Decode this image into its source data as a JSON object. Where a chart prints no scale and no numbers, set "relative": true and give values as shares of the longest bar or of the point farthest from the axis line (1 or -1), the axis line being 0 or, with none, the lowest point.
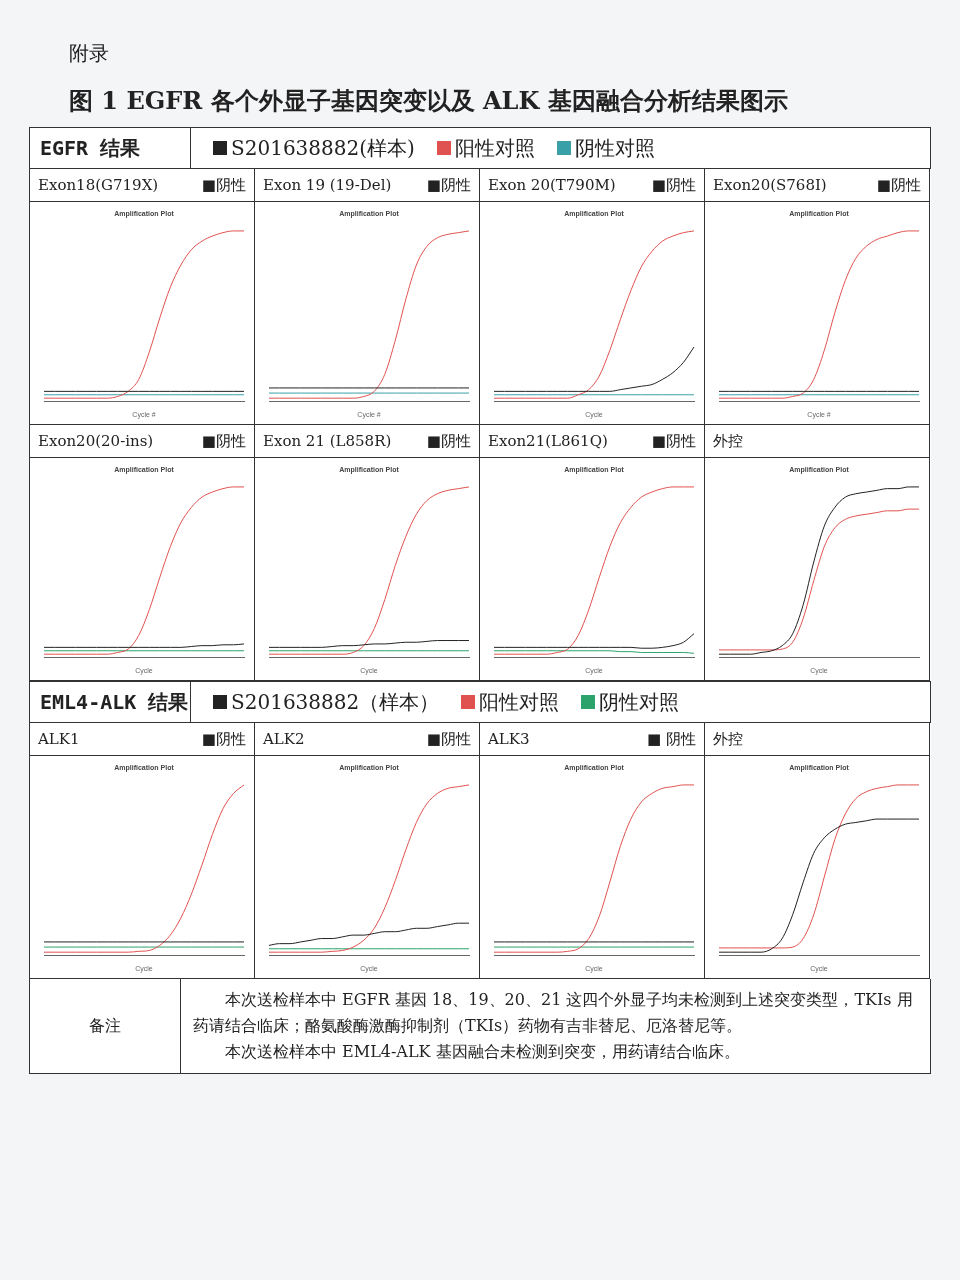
{
  "chart_data": [
    {
      "type": "other",
      "title": "图 1 EGFR 各个外显子基因突变以及 ALK 基因融合分析结果图示",
      "annotations": [
        "附录"
      ]
    },
    {
      "type": "other",
      "title": "EGFR 结果",
      "annotations": [
        "S201638882(样本)",
        "阳性对照",
        "阴性对照"
      ]
    },
    {
      "type": "line",
      "title": "Exon18(G719X)",
      "subtitle": "Amplification Plot",
      "xlabel": "Cycle #",
      "annotations": [
        "■阴性"
      ],
      "relative": true,
      "tick_labels": false,
      "categories": [
        null,
        null,
        null,
        null,
        null,
        null,
        null,
        null,
        null,
        null,
        null,
        null,
        null,
        null,
        null,
        null,
        null,
        null,
        null,
        null
      ],
      "series": [
        {
          "color": "#222222",
          "values": [
            0.06,
            0.06,
            0.06,
            0.06,
            0.06,
            0.06,
            0.06,
            0.06,
            0.06,
            0.06,
            0.06,
            0.06,
            0.06,
            0.06,
            0.06,
            0.06,
            0.06,
            0.06,
            0.06,
            0.06
          ]
        },
        {
          "color": "#e0524f",
          "values": [
            0.02,
            0.02,
            0.02,
            0.02,
            0.02,
            0.02,
            0.02,
            0.03,
            0.06,
            0.13,
            0.29,
            0.49,
            0.67,
            0.8,
            0.89,
            0.94,
            0.97,
            0.99,
            1,
            1
          ]
        },
        {
          "color": "#3aa0a8",
          "values": [
            0.04,
            0.04,
            0.04,
            0.04,
            0.04,
            0.04,
            0.04,
            0.04,
            0.04,
            0.04,
            0.04,
            0.04,
            0.04,
            0.04,
            0.04,
            0.04,
            0.04,
            0.04,
            0.04,
            0.04
          ]
        }
      ]
    },
    {
      "type": "line",
      "title": "Exon 19 (19-Del)",
      "subtitle": "Amplification Plot",
      "xlabel": "Cycle #",
      "annotations": [
        "■阴性"
      ],
      "relative": true,
      "tick_labels": false,
      "categories": [
        null,
        null,
        null,
        null,
        null,
        null,
        null,
        null,
        null,
        null,
        null,
        null,
        null,
        null,
        null,
        null,
        null,
        null,
        null,
        null
      ],
      "series": [
        {
          "color": "#222222",
          "values": [
            0.08,
            0.08,
            0.08,
            0.08,
            0.08,
            0.08,
            0.08,
            0.08,
            0.08,
            0.08,
            0.08,
            0.08,
            0.08,
            0.08,
            0.08,
            0.08,
            0.08,
            0.08,
            0.08,
            0.08
          ]
        },
        {
          "color": "#e0524f",
          "values": [
            0.02,
            0.02,
            0.02,
            0.02,
            0.02,
            0.02,
            0.02,
            0.02,
            0.02,
            0.03,
            0.06,
            0.16,
            0.36,
            0.6,
            0.8,
            0.91,
            0.96,
            0.98,
            0.99,
            1
          ]
        },
        {
          "color": "#3aa0a8",
          "values": [
            0.05,
            0.05,
            0.05,
            0.05,
            0.05,
            0.05,
            0.05,
            0.05,
            0.05,
            0.05,
            0.05,
            0.05,
            0.05,
            0.05,
            0.05,
            0.05,
            0.05,
            0.05,
            0.05,
            0.05
          ]
        }
      ]
    },
    {
      "type": "line",
      "title": "Exon 20(T790M)",
      "subtitle": "Amplification Plot",
      "xlabel": "Cycle",
      "annotations": [
        "■阴性"
      ],
      "relative": true,
      "tick_labels": false,
      "categories": [
        null,
        null,
        null,
        null,
        null,
        null,
        null,
        null,
        null,
        null,
        null,
        null,
        null,
        null,
        null,
        null,
        null,
        null,
        null,
        null
      ],
      "series": [
        {
          "color": "#222222",
          "values": [
            0.06,
            0.06,
            0.06,
            0.06,
            0.06,
            0.06,
            0.06,
            0.06,
            0.06,
            0.06,
            0.06,
            0.06,
            0.07,
            0.08,
            0.09,
            0.1,
            0.13,
            0.17,
            0.23,
            0.32
          ]
        },
        {
          "color": "#e0524f",
          "values": [
            0.02,
            0.02,
            0.02,
            0.02,
            0.02,
            0.02,
            0.02,
            0.02,
            0.04,
            0.07,
            0.15,
            0.3,
            0.48,
            0.65,
            0.79,
            0.88,
            0.94,
            0.97,
            0.99,
            1
          ]
        },
        {
          "color": "#3aa0a8",
          "values": [
            0.04,
            0.04,
            0.04,
            0.04,
            0.04,
            0.04,
            0.04,
            0.04,
            0.04,
            0.04,
            0.04,
            0.04,
            0.04,
            0.04,
            0.04,
            0.04,
            0.04,
            0.04,
            0.04,
            0.04
          ]
        }
      ]
    },
    {
      "type": "line",
      "title": "Exon20(S768I)",
      "subtitle": "Amplification Plot",
      "xlabel": "Cycle #",
      "annotations": [
        "■阴性"
      ],
      "relative": true,
      "tick_labels": false,
      "categories": [
        null,
        null,
        null,
        null,
        null,
        null,
        null,
        null,
        null,
        null,
        null,
        null,
        null,
        null,
        null,
        null,
        null,
        null,
        null,
        null
      ],
      "series": [
        {
          "color": "#222222",
          "values": [
            0.06,
            0.06,
            0.06,
            0.06,
            0.06,
            0.06,
            0.06,
            0.06,
            0.06,
            0.06,
            0.06,
            0.06,
            0.06,
            0.06,
            0.06,
            0.06,
            0.06,
            0.06,
            0.06,
            0.06
          ]
        },
        {
          "color": "#e0524f",
          "values": [
            0.02,
            0.02,
            0.02,
            0.02,
            0.02,
            0.02,
            0.02,
            0.03,
            0.05,
            0.13,
            0.3,
            0.52,
            0.71,
            0.84,
            0.91,
            0.95,
            0.97,
            0.99,
            1,
            1
          ]
        },
        {
          "color": "#3aa0a8",
          "values": [
            0.04,
            0.04,
            0.04,
            0.04,
            0.04,
            0.04,
            0.04,
            0.04,
            0.04,
            0.04,
            0.04,
            0.04,
            0.04,
            0.04,
            0.04,
            0.04,
            0.04,
            0.04,
            0.04,
            0.04
          ]
        }
      ]
    },
    {
      "type": "line",
      "title": "Exon20(20-ins)",
      "subtitle": "Amplification Plot",
      "xlabel": "Cycle",
      "annotations": [
        "■阴性"
      ],
      "relative": true,
      "tick_labels": false,
      "categories": [
        null,
        null,
        null,
        null,
        null,
        null,
        null,
        null,
        null,
        null,
        null,
        null,
        null,
        null,
        null,
        null,
        null,
        null,
        null,
        null
      ],
      "series": [
        {
          "color": "#222222",
          "values": [
            0.06,
            0.06,
            0.06,
            0.06,
            0.06,
            0.06,
            0.06,
            0.06,
            0.06,
            0.06,
            0.06,
            0.06,
            0.06,
            0.06,
            0.065,
            0.07,
            0.07,
            0.075,
            0.075,
            0.08
          ]
        },
        {
          "color": "#e0524f",
          "values": [
            0.02,
            0.02,
            0.02,
            0.02,
            0.02,
            0.02,
            0.02,
            0.03,
            0.05,
            0.13,
            0.28,
            0.47,
            0.65,
            0.79,
            0.88,
            0.94,
            0.97,
            0.99,
            1,
            1
          ]
        },
        {
          "color": "#2ba36b",
          "values": [
            0.04,
            0.04,
            0.04,
            0.04,
            0.04,
            0.04,
            0.04,
            0.04,
            0.04,
            0.04,
            0.04,
            0.04,
            0.04,
            0.04,
            0.04,
            0.04,
            0.04,
            0.04,
            0.04,
            0.04
          ]
        }
      ]
    },
    {
      "type": "line",
      "title": "Exon 21 (L858R)",
      "subtitle": "Amplification Plot",
      "xlabel": "Cycle",
      "annotations": [
        "■阴性"
      ],
      "relative": true,
      "tick_labels": false,
      "categories": [
        null,
        null,
        null,
        null,
        null,
        null,
        null,
        null,
        null,
        null,
        null,
        null,
        null,
        null,
        null,
        null,
        null,
        null,
        null,
        null
      ],
      "series": [
        {
          "color": "#222222",
          "values": [
            0.06,
            0.06,
            0.06,
            0.06,
            0.06,
            0.06,
            0.065,
            0.07,
            0.07,
            0.075,
            0.08,
            0.08,
            0.085,
            0.09,
            0.09,
            0.095,
            0.1,
            0.1,
            0.1,
            0.1
          ]
        },
        {
          "color": "#e0524f",
          "values": [
            0.02,
            0.02,
            0.02,
            0.02,
            0.02,
            0.02,
            0.02,
            0.02,
            0.03,
            0.07,
            0.17,
            0.34,
            0.54,
            0.71,
            0.84,
            0.92,
            0.96,
            0.98,
            0.99,
            1
          ]
        },
        {
          "color": "#2ba36b",
          "values": [
            0.04,
            0.04,
            0.04,
            0.04,
            0.04,
            0.04,
            0.04,
            0.04,
            0.04,
            0.04,
            0.04,
            0.04,
            0.04,
            0.04,
            0.04,
            0.04,
            0.04,
            0.04,
            0.04,
            0.04
          ]
        }
      ]
    },
    {
      "type": "line",
      "title": "Exon21(L861Q)",
      "subtitle": "Amplification Plot",
      "xlabel": "Cycle",
      "annotations": [
        "■阴性"
      ],
      "relative": true,
      "tick_labels": false,
      "categories": [
        null,
        null,
        null,
        null,
        null,
        null,
        null,
        null,
        null,
        null,
        null,
        null,
        null,
        null,
        null,
        null,
        null,
        null,
        null,
        null
      ],
      "series": [
        {
          "color": "#222222",
          "values": [
            0.06,
            0.06,
            0.06,
            0.06,
            0.06,
            0.06,
            0.06,
            0.06,
            0.06,
            0.06,
            0.06,
            0.06,
            0.06,
            0.06,
            0.055,
            0.055,
            0.06,
            0.07,
            0.09,
            0.14
          ]
        },
        {
          "color": "#e0524f",
          "values": [
            0.02,
            0.02,
            0.02,
            0.02,
            0.02,
            0.02,
            0.03,
            0.05,
            0.13,
            0.28,
            0.47,
            0.65,
            0.79,
            0.88,
            0.94,
            0.97,
            0.99,
            1,
            1,
            1
          ]
        },
        {
          "color": "#2ba36b",
          "values": [
            0.04,
            0.04,
            0.04,
            0.04,
            0.04,
            0.04,
            0.04,
            0.04,
            0.04,
            0.04,
            0.04,
            0.04,
            0.035,
            0.035,
            0.03,
            0.03,
            0.03,
            0.03,
            0.03,
            0.025
          ]
        }
      ]
    },
    {
      "type": "line",
      "title": "外控",
      "subtitle": "Amplification Plot",
      "xlabel": "Cycle",
      "relative": true,
      "tick_labels": false,
      "categories": [
        null,
        null,
        null,
        null,
        null,
        null,
        null,
        null,
        null,
        null,
        null,
        null,
        null,
        null,
        null,
        null,
        null,
        null,
        null,
        null
      ],
      "series": [
        {
          "color": "#222222",
          "values": [
            0.02,
            0.02,
            0.02,
            0.02,
            0.03,
            0.04,
            0.07,
            0.14,
            0.31,
            0.56,
            0.77,
            0.88,
            0.94,
            0.96,
            0.97,
            0.98,
            0.99,
            0.99,
            1,
            1
          ]
        },
        {
          "color": "#e0524f",
          "values": [
            0.045,
            0.045,
            0.045,
            0.045,
            0.045,
            0.045,
            0.05,
            0.09,
            0.23,
            0.45,
            0.65,
            0.76,
            0.81,
            0.83,
            0.84,
            0.85,
            0.86,
            0.86,
            0.87,
            0.87
          ]
        }
      ]
    },
    {
      "type": "other",
      "title": "EML4-ALK 结果",
      "annotations": [
        "S201638882（样本）",
        "阳性对照",
        "阴性对照"
      ]
    },
    {
      "type": "line",
      "title": "ALK1",
      "subtitle": "Amplification Plot",
      "xlabel": "Cycle",
      "annotations": [
        "■阴性"
      ],
      "relative": true,
      "tick_labels": false,
      "categories": [
        null,
        null,
        null,
        null,
        null,
        null,
        null,
        null,
        null,
        null,
        null,
        null,
        null,
        null,
        null,
        null,
        null,
        null,
        null,
        null
      ],
      "series": [
        {
          "color": "#222222",
          "values": [
            0.08,
            0.08,
            0.08,
            0.08,
            0.08,
            0.08,
            0.08,
            0.08,
            0.08,
            0.08,
            0.08,
            0.08,
            0.08,
            0.08,
            0.08,
            0.08,
            0.08,
            0.08,
            0.08,
            0.08
          ]
        },
        {
          "color": "#e0524f",
          "values": [
            0.02,
            0.02,
            0.02,
            0.02,
            0.02,
            0.02,
            0.02,
            0.02,
            0.02,
            0.025,
            0.03,
            0.06,
            0.12,
            0.22,
            0.36,
            0.53,
            0.71,
            0.86,
            0.95,
            1
          ]
        },
        {
          "color": "#2ba36b",
          "values": [
            0.05,
            0.05,
            0.05,
            0.05,
            0.05,
            0.05,
            0.05,
            0.05,
            0.05,
            0.05,
            0.05,
            0.05,
            0.05,
            0.05,
            0.05,
            0.05,
            0.05,
            0.05,
            0.05,
            0.05
          ]
        }
      ]
    },
    {
      "type": "line",
      "title": "ALK2",
      "subtitle": "Amplification Plot",
      "xlabel": "Cycle",
      "annotations": [
        "■阴性"
      ],
      "relative": true,
      "tick_labels": false,
      "categories": [
        null,
        null,
        null,
        null,
        null,
        null,
        null,
        null,
        null,
        null,
        null,
        null,
        null,
        null,
        null,
        null,
        null,
        null,
        null,
        null
      ],
      "series": [
        {
          "color": "#222222",
          "values": [
            0.06,
            0.07,
            0.07,
            0.08,
            0.09,
            0.1,
            0.1,
            0.11,
            0.12,
            0.12,
            0.13,
            0.14,
            0.14,
            0.15,
            0.16,
            0.16,
            0.17,
            0.18,
            0.19,
            0.19
          ]
        },
        {
          "color": "#e0524f",
          "values": [
            0.02,
            0.02,
            0.02,
            0.02,
            0.02,
            0.02,
            0.025,
            0.03,
            0.05,
            0.09,
            0.16,
            0.28,
            0.44,
            0.62,
            0.78,
            0.89,
            0.95,
            0.98,
            0.99,
            1
          ]
        },
        {
          "color": "#2ba36b",
          "values": [
            0.04,
            0.04,
            0.04,
            0.04,
            0.04,
            0.04,
            0.04,
            0.04,
            0.04,
            0.04,
            0.04,
            0.04,
            0.04,
            0.04,
            0.04,
            0.04,
            0.04,
            0.04,
            0.04,
            0.04
          ]
        }
      ]
    },
    {
      "type": "line",
      "title": "ALK3",
      "subtitle": "Amplification Plot",
      "xlabel": "Cycle",
      "annotations": [
        "■ 阴性"
      ],
      "relative": true,
      "tick_labels": false,
      "categories": [
        null,
        null,
        null,
        null,
        null,
        null,
        null,
        null,
        null,
        null,
        null,
        null,
        null,
        null,
        null,
        null,
        null,
        null,
        null,
        null
      ],
      "series": [
        {
          "color": "#222222",
          "values": [
            0.08,
            0.08,
            0.08,
            0.08,
            0.08,
            0.08,
            0.08,
            0.08,
            0.08,
            0.08,
            0.08,
            0.08,
            0.08,
            0.08,
            0.08,
            0.08,
            0.08,
            0.08,
            0.08,
            0.08
          ]
        },
        {
          "color": "#e0524f",
          "values": [
            0.02,
            0.02,
            0.02,
            0.02,
            0.02,
            0.02,
            0.02,
            0.025,
            0.04,
            0.1,
            0.23,
            0.43,
            0.64,
            0.8,
            0.9,
            0.95,
            0.98,
            0.99,
            1,
            1
          ]
        },
        {
          "color": "#2ba36b",
          "values": [
            0.05,
            0.05,
            0.05,
            0.05,
            0.05,
            0.05,
            0.05,
            0.05,
            0.05,
            0.05,
            0.05,
            0.05,
            0.05,
            0.05,
            0.05,
            0.05,
            0.05,
            0.05,
            0.05,
            0.05
          ]
        }
      ]
    },
    {
      "type": "line",
      "title": "外控",
      "subtitle": "Amplification Plot",
      "xlabel": "Cycle",
      "relative": true,
      "tick_labels": false,
      "categories": [
        null,
        null,
        null,
        null,
        null,
        null,
        null,
        null,
        null,
        null,
        null,
        null,
        null,
        null,
        null,
        null,
        null,
        null,
        null,
        null
      ],
      "series": [
        {
          "color": "#222222",
          "values": [
            0.02,
            0.02,
            0.02,
            0.02,
            0.02,
            0.04,
            0.1,
            0.24,
            0.43,
            0.6,
            0.69,
            0.74,
            0.77,
            0.78,
            0.79,
            0.8,
            0.8,
            0.8,
            0.8,
            0.8
          ]
        },
        {
          "color": "#e0524f",
          "values": [
            0.045,
            0.045,
            0.045,
            0.045,
            0.045,
            0.045,
            0.045,
            0.05,
            0.1,
            0.24,
            0.46,
            0.68,
            0.83,
            0.92,
            0.96,
            0.98,
            0.99,
            1,
            1,
            1
          ]
        }
      ]
    },
    {
      "type": "other",
      "title": "备注",
      "annotations": [
        "本次送检样本中 EGFR 基因 18、19、20、21 这四个外显子均未检测到上述突变类型，TKIs 用药请结合临床；酪氨酸酶激酶抑制剂（TKIs）药物有吉非替尼、厄洛替尼等。",
        "本次送检样本中 EML4-ALK 基因融合未检测到突变，用药请结合临床。"
      ]
    }
  ]
}
